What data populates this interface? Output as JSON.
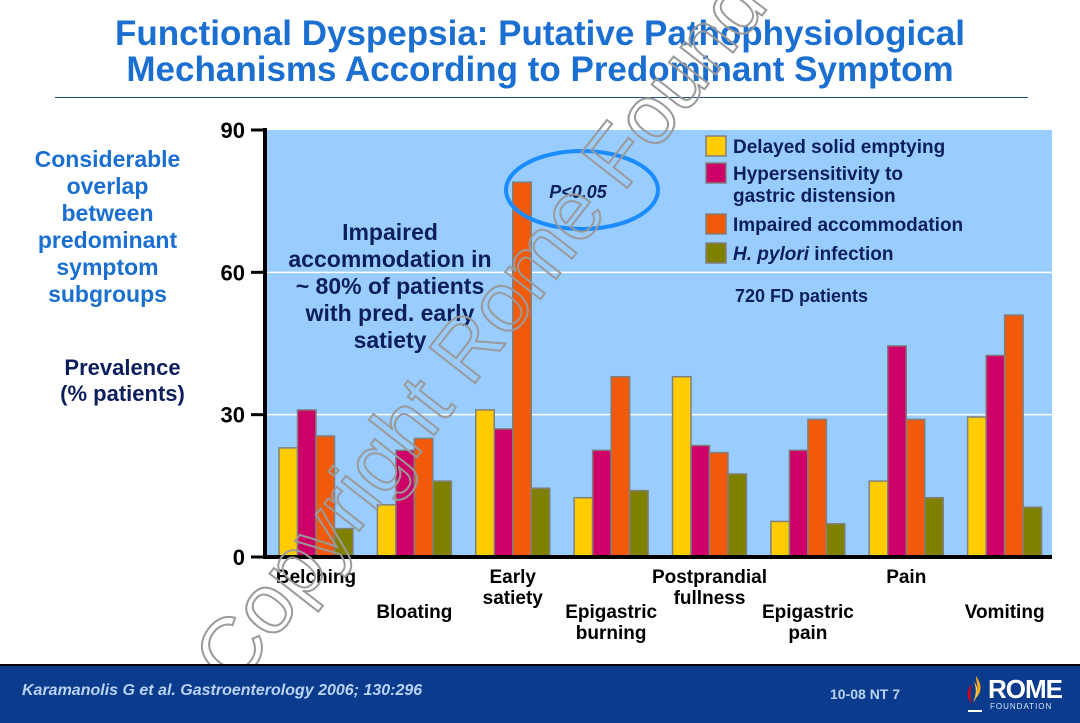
{
  "slide": {
    "title_line1": "Functional Dyspepsia: Putative Pathophysiological",
    "title_line2": "Mechanisms According to Predominant Symptom",
    "side_note_lines": [
      "Considerable",
      "overlap",
      "between",
      "predominant",
      "symptom",
      "subgroups"
    ],
    "ylabel_lines": [
      "Prevalence",
      "(% patients)"
    ],
    "watermark": "Copyright Rome Foundation"
  },
  "footer": {
    "citation": "Karamanolis G et al. Gastroenterology 2006; 130:296",
    "slide_code": "10-08   NT 7",
    "logo_text": "ROME",
    "logo_subtext": "FOUNDATION"
  },
  "chart_data": {
    "type": "bar",
    "title": "Functional Dyspepsia: Putative Pathophysiological Mechanisms According to Predominant Symptom",
    "xlabel": "",
    "ylabel": "Prevalence (% patients)",
    "ylim": [
      0,
      90
    ],
    "yticks": [
      0,
      30,
      60,
      90
    ],
    "grid": true,
    "legend_position": "top-right",
    "categories": [
      {
        "lines": [
          "Belching"
        ],
        "row": "upper"
      },
      {
        "lines": [
          "Bloating"
        ],
        "row": "lower"
      },
      {
        "lines": [
          "Early",
          "satiety"
        ],
        "row": "upper"
      },
      {
        "lines": [
          "Epigastric",
          "burning"
        ],
        "row": "lower"
      },
      {
        "lines": [
          "Postprandial",
          "fullness"
        ],
        "row": "upper"
      },
      {
        "lines": [
          "Epigastric",
          "pain"
        ],
        "row": "lower"
      },
      {
        "lines": [
          "Pain"
        ],
        "row": "upper"
      },
      {
        "lines": [
          "Vomiting"
        ],
        "row": "lower"
      }
    ],
    "series": [
      {
        "name": "Delayed solid emptying",
        "legend_lines": [
          "Delayed solid emptying"
        ],
        "color": "#ffcc00",
        "values": [
          23,
          11,
          31,
          12.5,
          38,
          7.5,
          16,
          29.5
        ]
      },
      {
        "name": "Hypersensitivity to gastric distension",
        "legend_lines": [
          "Hypersensitivity to",
          "gastric distension"
        ],
        "color": "#cc0066",
        "values": [
          31,
          22.5,
          27,
          22.5,
          23.5,
          22.5,
          44.5,
          42.5
        ]
      },
      {
        "name": "Impaired accommodation",
        "legend_lines": [
          "Impaired accommodation"
        ],
        "color": "#f05a0a",
        "values": [
          25.5,
          25,
          79,
          38,
          22,
          29,
          29,
          51
        ]
      },
      {
        "name": "H. pylori infection",
        "legend_lines": [
          "H. pylori infection"
        ],
        "italic_prefix": "H. pylori",
        "color": "#808000",
        "values": [
          6,
          16,
          14.5,
          14,
          17.5,
          7,
          12.5,
          10.5
        ]
      }
    ],
    "annotations": {
      "sample_size": "720 FD patients",
      "significance": "P<0.05",
      "callout_lines": [
        "Impaired",
        "accommodation in",
        "~ 80% of patients",
        "with pred. early",
        "satiety"
      ]
    },
    "colors": {
      "plot_background": "#99ccff",
      "gridline": "#ffffff",
      "bar_outline": "#808080",
      "ellipse": "#1a8cff",
      "callout_text": "#0c1f5c"
    }
  }
}
